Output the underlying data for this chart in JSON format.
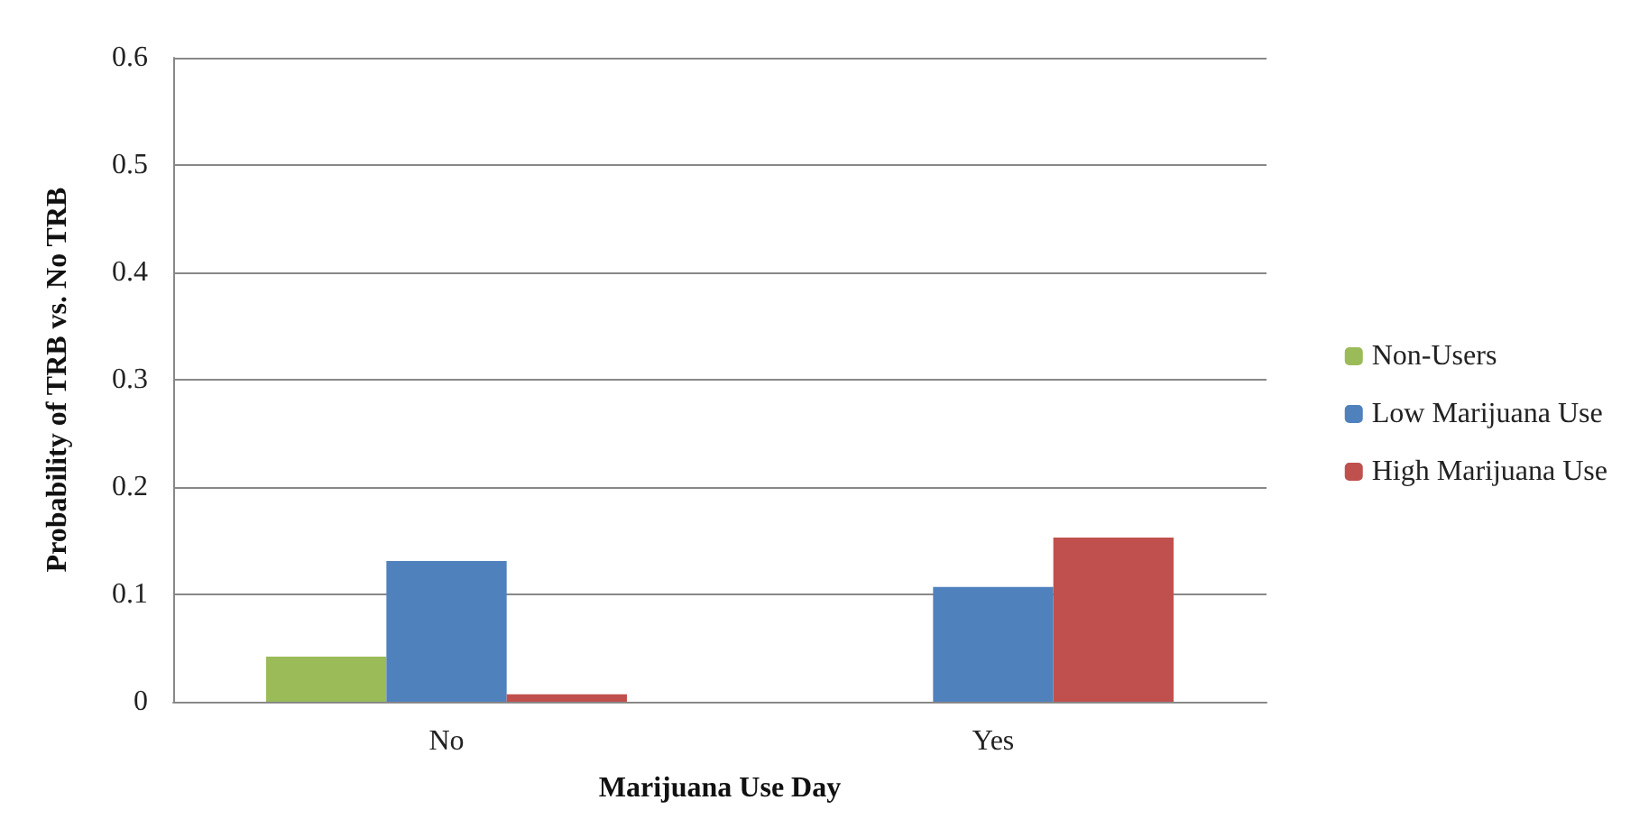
{
  "chart_data": {
    "type": "bar",
    "xlabel": "Marijuana Use Day",
    "ylabel": "Probability of TRB vs. No TRB",
    "categories": [
      "No",
      "Yes"
    ],
    "series": [
      {
        "name": "Non-Users",
        "color": "#9bbb59",
        "values": [
          0.042,
          0
        ]
      },
      {
        "name": "Low Marijuana Use",
        "color": "#4f81bd",
        "values": [
          0.131,
          0.107
        ]
      },
      {
        "name": "High Marijuana Use",
        "color": "#c0504d",
        "values": [
          0.007,
          0.153
        ]
      }
    ],
    "ylim": [
      0,
      0.6
    ],
    "yticks": [
      0,
      0.1,
      0.2,
      0.3,
      0.4,
      0.5,
      0.6
    ],
    "grid": "y",
    "legend": "right"
  }
}
